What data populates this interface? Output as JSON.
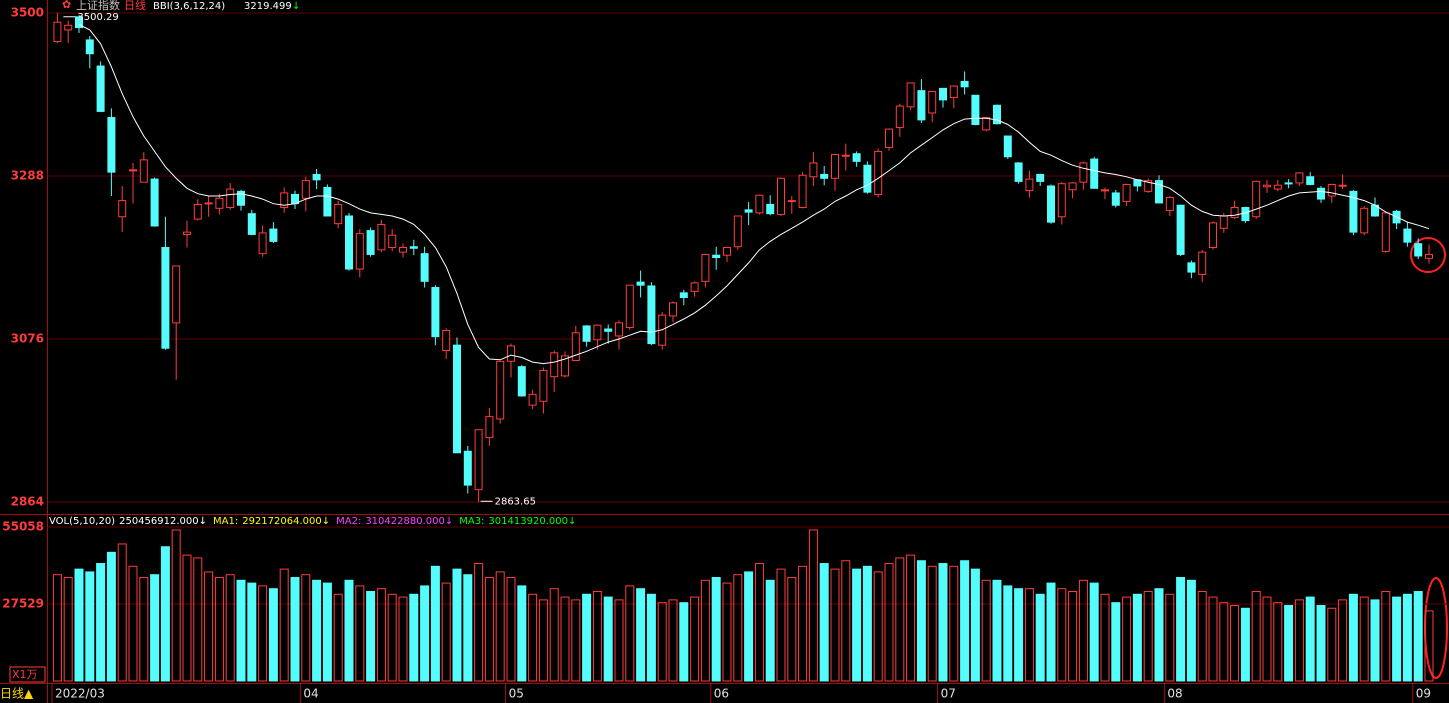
{
  "chart_data": {
    "type": "candlestick",
    "title": "上证指数",
    "period": "日线",
    "indicator": "BBI(3,6,12,24)",
    "indicator_arrow": "↓",
    "vol_legend": [
      "VOL(5,10,20)",
      "250456912.000↓",
      "MA1:",
      "292172064.000↓",
      "MA2:",
      "310422880.000↓",
      "MA3:",
      "301413920.000↓"
    ],
    "vol_unit": "X1万",
    "footer": "日线▲",
    "up_color": "#ff3c3c",
    "down_color": "#54fcfc",
    "bbi_color": "#ffffff",
    "ylim": [
      2864,
      3500
    ],
    "yticks": [
      3500,
      3288,
      3076,
      2864
    ],
    "vlim": [
      0,
      55058
    ],
    "vyticks": [
      55058,
      27529
    ],
    "categories": [
      "2022/03",
      null,
      null,
      null,
      null,
      null,
      null,
      null,
      null,
      null,
      null,
      null,
      null,
      null,
      null,
      null,
      null,
      null,
      null,
      null,
      null,
      null,
      null,
      "04",
      null,
      null,
      null,
      null,
      null,
      null,
      null,
      null,
      null,
      null,
      null,
      null,
      null,
      null,
      null,
      null,
      null,
      null,
      "05",
      null,
      null,
      null,
      null,
      null,
      null,
      null,
      null,
      null,
      null,
      null,
      null,
      null,
      null,
      null,
      null,
      null,
      null,
      "06",
      null,
      null,
      null,
      null,
      null,
      null,
      null,
      null,
      null,
      null,
      null,
      null,
      null,
      null,
      null,
      null,
      null,
      null,
      null,
      null,
      "07",
      null,
      null,
      null,
      null,
      null,
      null,
      null,
      null,
      null,
      null,
      null,
      null,
      null,
      null,
      null,
      null,
      null,
      null,
      null,
      null,
      "08",
      null,
      null,
      null,
      null,
      null,
      null,
      null,
      null,
      null,
      null,
      null,
      null,
      null,
      null,
      null,
      null,
      null,
      null,
      null,
      null,
      null,
      null,
      "09",
      null
    ],
    "open": [
      3463,
      3478,
      3495,
      3465,
      3431,
      3364,
      3235,
      3296,
      3280,
      3284,
      3195,
      3097,
      3212,
      3232,
      3252,
      3246,
      3247,
      3268,
      3239,
      3187,
      3219,
      3247,
      3264,
      3259,
      3290,
      3273,
      3226,
      3236,
      3167,
      3217,
      3192,
      3195,
      3189,
      3196,
      3187,
      3143,
      3061,
      3068,
      2930,
      2880,
      2948,
      2972,
      3047,
      3040,
      2990,
      2995,
      3027,
      3028,
      3048,
      3093,
      3075,
      3089,
      3080,
      3091,
      3150,
      3145,
      3068,
      3106,
      3136,
      3138,
      3151,
      3185,
      3185,
      3196,
      3244,
      3240,
      3251,
      3238,
      3255,
      3247,
      3287,
      3290,
      3285,
      3315,
      3317,
      3302,
      3264,
      3325,
      3351,
      3378,
      3399,
      3370,
      3402,
      3390,
      3411,
      3393,
      3348,
      3380,
      3340,
      3305,
      3269,
      3290,
      3275,
      3235,
      3270,
      3280,
      3310,
      3270,
      3266,
      3255,
      3283,
      3268,
      3282,
      3243,
      3250,
      3175,
      3160,
      3195,
      3220,
      3234,
      3247,
      3235,
      3274,
      3271,
      3279,
      3279,
      3287,
      3272,
      3262,
      3276,
      3268,
      3214,
      3250,
      3190,
      3242,
      3219,
      3200,
      3181
    ],
    "high": [
      3500.29,
      3490,
      3497,
      3470,
      3437,
      3376,
      3275,
      3305,
      3319,
      3286,
      3235,
      3171,
      3230,
      3258,
      3262,
      3265,
      3279,
      3270,
      3244,
      3224,
      3228,
      3273,
      3269,
      3287,
      3297,
      3277,
      3256,
      3240,
      3219,
      3221,
      3231,
      3219,
      3200,
      3205,
      3196,
      3146,
      3090,
      3078,
      2937,
      2958,
      2986,
      3048,
      3070,
      3042,
      3010,
      3039,
      3061,
      3060,
      3093,
      3094,
      3095,
      3095,
      3100,
      3146,
      3165,
      3150,
      3111,
      3125,
      3140,
      3151,
      3187,
      3196,
      3196,
      3236,
      3254,
      3264,
      3263,
      3286,
      3262,
      3293,
      3319,
      3301,
      3317,
      3330,
      3320,
      3307,
      3324,
      3350,
      3382,
      3409,
      3414,
      3398,
      3402,
      3406,
      3424,
      3393,
      3365,
      3381,
      3340,
      3306,
      3295,
      3291,
      3277,
      3280,
      3280,
      3307,
      3313,
      3273,
      3270,
      3278,
      3284,
      3285,
      3289,
      3262,
      3250,
      3178,
      3192,
      3229,
      3240,
      3256,
      3248,
      3282,
      3283,
      3283,
      3284,
      3293,
      3293,
      3275,
      3278,
      3290,
      3270,
      3249,
      3260,
      3242,
      3244,
      3228,
      3207,
      3199
    ],
    "low": [
      3461,
      3461,
      3474,
      3428,
      3371,
      3262,
      3215,
      3252,
      3280,
      3222,
      3062,
      3023,
      3195,
      3230,
      3235,
      3238,
      3244,
      3243,
      3211,
      3183,
      3201,
      3240,
      3245,
      3242,
      3271,
      3236,
      3220,
      3165,
      3156,
      3183,
      3189,
      3190,
      3182,
      3185,
      3143,
      3068,
      3050,
      2928,
      2875,
      2863.65,
      2937,
      2966,
      3026,
      3001,
      2985,
      2979,
      3007,
      3026,
      3048,
      3066,
      3062,
      3070,
      3062,
      3088,
      3130,
      3068,
      3062,
      3098,
      3120,
      3131,
      3143,
      3166,
      3176,
      3192,
      3224,
      3238,
      3237,
      3236,
      3239,
      3246,
      3275,
      3276,
      3269,
      3295,
      3300,
      3265,
      3260,
      3321,
      3339,
      3374,
      3357,
      3358,
      3377,
      3376,
      3394,
      3354,
      3346,
      3355,
      3310,
      3278,
      3260,
      3275,
      3226,
      3225,
      3259,
      3270,
      3272,
      3258,
      3247,
      3249,
      3268,
      3266,
      3253,
      3236,
      3184,
      3155,
      3150,
      3192,
      3214,
      3232,
      3227,
      3232,
      3266,
      3268,
      3272,
      3275,
      3276,
      3253,
      3253,
      3271,
      3211,
      3211,
      3235,
      3188,
      3219,
      3196,
      3180,
      3174
    ],
    "close": [
      3488,
      3484,
      3481,
      3447,
      3372,
      3293,
      3256,
      3296,
      3309,
      3223,
      3064,
      3171,
      3215,
      3251,
      3253,
      3259,
      3271,
      3250,
      3212,
      3214,
      3203,
      3266,
      3252,
      3282,
      3283,
      3236,
      3251,
      3167,
      3213,
      3186,
      3225,
      3211,
      3195,
      3194,
      3151,
      3079,
      3087,
      2928,
      2886,
      2958,
      2975,
      3047,
      3067,
      3002,
      3004,
      3035,
      3058,
      3054,
      3084,
      3073,
      3094,
      3086,
      3097,
      3146,
      3146,
      3070,
      3107,
      3123,
      3130,
      3149,
      3186,
      3182,
      3195,
      3236,
      3241,
      3263,
      3239,
      3285,
      3256,
      3289,
      3305,
      3285,
      3316,
      3315,
      3307,
      3267,
      3320,
      3349,
      3379,
      3409,
      3361,
      3398,
      3387,
      3405,
      3404,
      3355,
      3364,
      3356,
      3313,
      3281,
      3284,
      3281,
      3228,
      3278,
      3279,
      3305,
      3272,
      3270,
      3250,
      3277,
      3275,
      3282,
      3253,
      3260,
      3186,
      3163,
      3189,
      3227,
      3236,
      3247,
      3230,
      3281,
      3276,
      3276,
      3278,
      3292,
      3277,
      3258,
      3277,
      3276,
      3215,
      3246,
      3236,
      3240,
      3227,
      3202,
      3184,
      3186
    ],
    "volume": [
      38000,
      37000,
      40000,
      39000,
      42000,
      46000,
      49000,
      41000,
      37000,
      38000,
      48000,
      54000,
      45000,
      44000,
      39000,
      37000,
      38000,
      36000,
      35000,
      34000,
      33000,
      40000,
      37000,
      38000,
      36000,
      35000,
      31000,
      36000,
      34000,
      32000,
      33000,
      31000,
      30000,
      31000,
      34000,
      41000,
      35000,
      40000,
      38000,
      42000,
      37000,
      39000,
      37000,
      34000,
      31000,
      29000,
      33000,
      30000,
      29000,
      31000,
      32000,
      30000,
      29000,
      34000,
      33000,
      31000,
      28000,
      29000,
      28000,
      30000,
      36000,
      37000,
      35000,
      38000,
      39000,
      42000,
      36000,
      40000,
      37000,
      41000,
      54000,
      42000,
      40000,
      43000,
      40000,
      41000,
      39000,
      42000,
      44000,
      45000,
      43000,
      41000,
      42000,
      41000,
      43000,
      40000,
      36000,
      36000,
      34000,
      33000,
      33000,
      31000,
      35000,
      33000,
      32000,
      36000,
      35000,
      31000,
      28000,
      30000,
      31000,
      32000,
      33000,
      31000,
      37000,
      36000,
      32000,
      30000,
      28000,
      27000,
      26000,
      32000,
      30000,
      28000,
      27000,
      29000,
      30000,
      27000,
      26000,
      29000,
      31000,
      30000,
      29000,
      32000,
      30000,
      31000,
      32000,
      25046
    ],
    "bbi": [
      null,
      null,
      3485,
      3478,
      3460,
      3430,
      3395,
      3365,
      3340,
      3320,
      3300,
      3285,
      3272,
      3265,
      3262,
      3262,
      3264,
      3265,
      3262,
      3258,
      3252,
      3250,
      3252,
      3258,
      3262,
      3262,
      3258,
      3252,
      3245,
      3240,
      3238,
      3236,
      3232,
      3225,
      3212,
      3195,
      3170,
      3135,
      3095,
      3065,
      3050,
      3049,
      3055,
      3052,
      3046,
      3044,
      3046,
      3050,
      3055,
      3060,
      3066,
      3072,
      3076,
      3081,
      3086,
      3085,
      3088,
      3095,
      3102,
      3110,
      3120,
      3132,
      3145,
      3160,
      3175,
      3192,
      3203,
      3212,
      3220,
      3228,
      3237,
      3245,
      3255,
      3262,
      3270,
      3276,
      3285,
      3295,
      3305,
      3318,
      3328,
      3338,
      3348,
      3356,
      3362,
      3363,
      3363,
      3361,
      3355,
      3345,
      3332,
      3320,
      3315,
      3308,
      3302,
      3298,
      3295,
      3292,
      3290,
      3287,
      3283,
      3280,
      3277,
      3272,
      3262,
      3250,
      3242,
      3237,
      3236,
      3237,
      3240,
      3245,
      3250,
      3256,
      3262,
      3266,
      3267,
      3268,
      3266,
      3263,
      3260,
      3256,
      3250,
      3241,
      3235,
      3228,
      3224,
      3219.499
    ]
  }
}
